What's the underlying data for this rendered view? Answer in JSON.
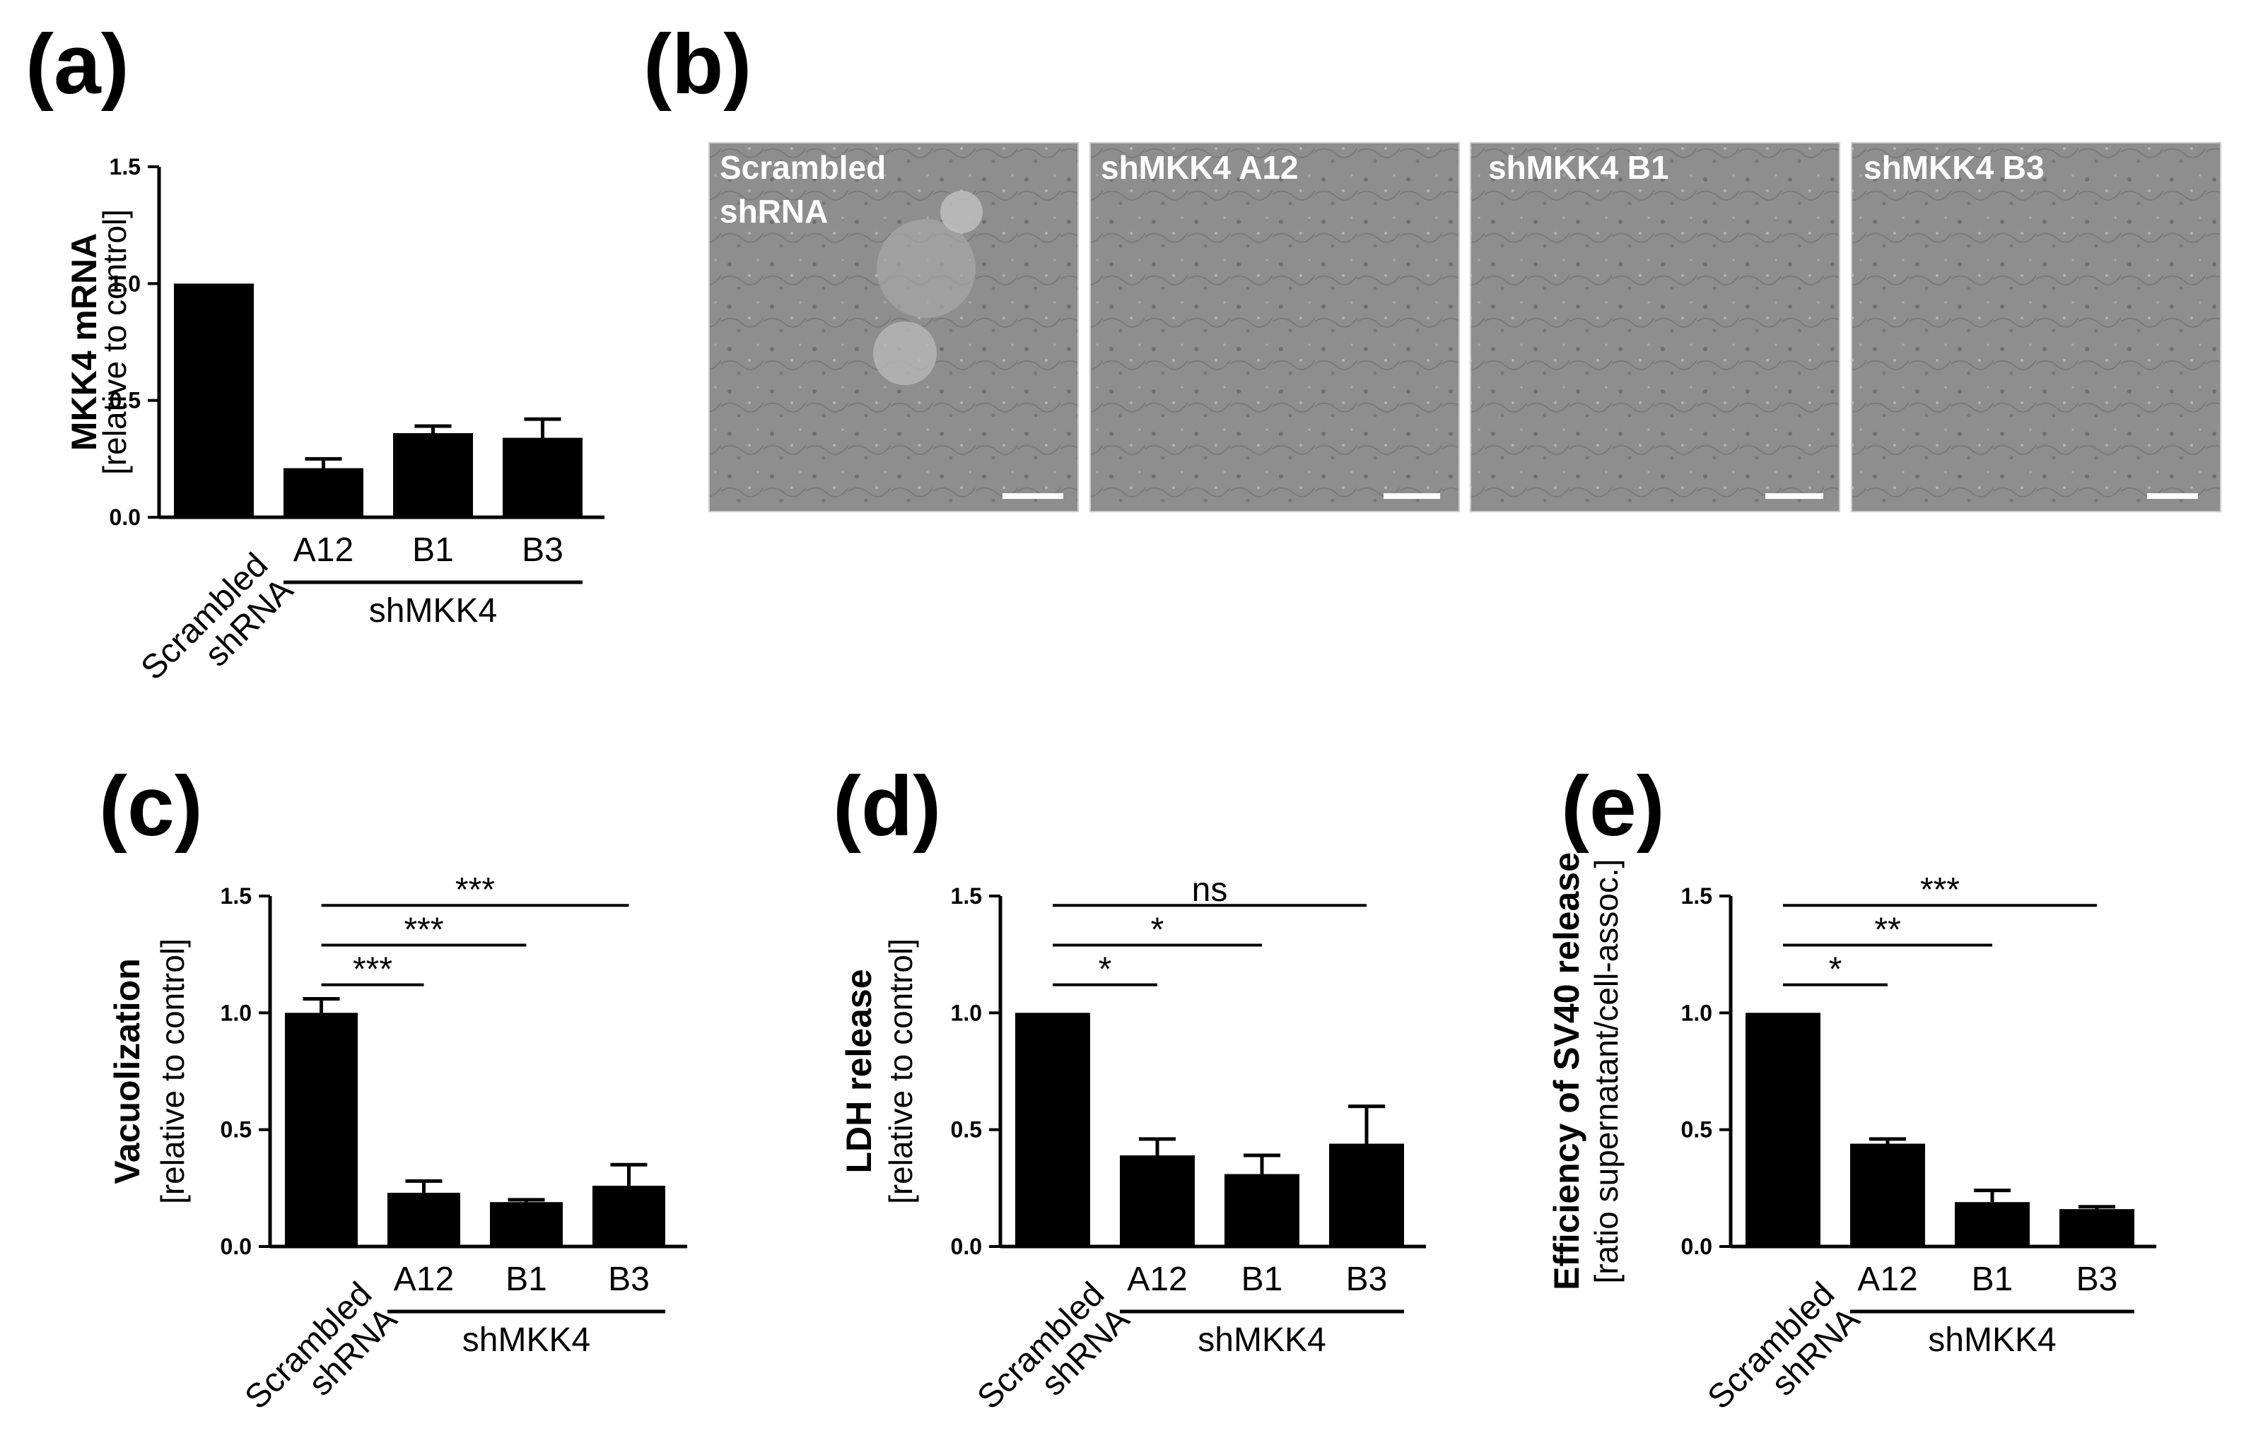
{
  "figure": {
    "panels": [
      {
        "letter": "(a)"
      },
      {
        "letter": "(b)"
      },
      {
        "letter": "(c)"
      },
      {
        "letter": "(d)"
      },
      {
        "letter": "(e)"
      }
    ],
    "micrographs": [
      {
        "label_lines": [
          "Scrambled",
          "shRNA"
        ]
      },
      {
        "label_lines": [
          "shMKK4 A12"
        ]
      },
      {
        "label_lines": [
          "shMKK4 B1"
        ]
      },
      {
        "label_lines": [
          "shMKK4 B3"
        ]
      }
    ],
    "colors": {
      "bars": "#000000",
      "micrograph_bg": "#8e8e8e",
      "micrograph_text": "#ffffff"
    }
  },
  "chart_data": [
    {
      "panel": "(a)",
      "type": "bar",
      "categories": [
        "Scrambled shRNA",
        "A12",
        "B1",
        "B3"
      ],
      "category_lines": [
        [
          "Scrambled",
          "shRNA"
        ],
        [
          "A12"
        ],
        [
          "B1"
        ],
        [
          "B3"
        ]
      ],
      "group_label": "shMKK4",
      "group_members": [
        "A12",
        "B1",
        "B3"
      ],
      "values": [
        1.0,
        0.21,
        0.36,
        0.34
      ],
      "errors": [
        0.0,
        0.04,
        0.03,
        0.08
      ],
      "ylabel_bold": "MKK4 mRNA",
      "ylabel_normal": "[relative to control]",
      "ylim": [
        0,
        1.5
      ],
      "yticks": [
        "0.0",
        "0.5",
        "1.0",
        "1.5"
      ],
      "significance": []
    },
    {
      "panel": "(c)",
      "type": "bar",
      "categories": [
        "Scrambled shRNA",
        "A12",
        "B1",
        "B3"
      ],
      "category_lines": [
        [
          "Scrambled",
          "shRNA"
        ],
        [
          "A12"
        ],
        [
          "B1"
        ],
        [
          "B3"
        ]
      ],
      "group_label": "shMKK4",
      "group_members": [
        "A12",
        "B1",
        "B3"
      ],
      "values": [
        1.0,
        0.23,
        0.19,
        0.26
      ],
      "errors": [
        0.06,
        0.05,
        0.01,
        0.09
      ],
      "ylabel_bold": "Vacuolization",
      "ylabel_normal": "[relative to control]",
      "ylim": [
        0,
        1.5
      ],
      "yticks": [
        "0.0",
        "0.5",
        "1.0",
        "1.5"
      ],
      "significance": [
        {
          "label": "***",
          "to": "A12",
          "y": 1.12
        },
        {
          "label": "***",
          "to": "B1",
          "y": 1.29
        },
        {
          "label": "***",
          "to": "B3",
          "y": 1.46
        }
      ]
    },
    {
      "panel": "(d)",
      "type": "bar",
      "categories": [
        "Scrambled shRNA",
        "A12",
        "B1",
        "B3"
      ],
      "category_lines": [
        [
          "Scrambled",
          "shRNA"
        ],
        [
          "A12"
        ],
        [
          "B1"
        ],
        [
          "B3"
        ]
      ],
      "group_label": "shMKK4",
      "group_members": [
        "A12",
        "B1",
        "B3"
      ],
      "values": [
        1.0,
        0.39,
        0.31,
        0.44
      ],
      "errors": [
        0.0,
        0.07,
        0.08,
        0.16
      ],
      "ylabel_bold": "LDH release",
      "ylabel_normal": "[relative to control]",
      "ylim": [
        0,
        1.5
      ],
      "yticks": [
        "0.0",
        "0.5",
        "1.0",
        "1.5"
      ],
      "significance": [
        {
          "label": "*",
          "to": "A12",
          "y": 1.12
        },
        {
          "label": "*",
          "to": "B1",
          "y": 1.29
        },
        {
          "label": "ns",
          "to": "B3",
          "y": 1.46
        }
      ]
    },
    {
      "panel": "(e)",
      "type": "bar",
      "categories": [
        "Scrambled shRNA",
        "A12",
        "B1",
        "B3"
      ],
      "category_lines": [
        [
          "Scrambled",
          "shRNA"
        ],
        [
          "A12"
        ],
        [
          "B1"
        ],
        [
          "B3"
        ]
      ],
      "group_label": "shMKK4",
      "group_members": [
        "A12",
        "B1",
        "B3"
      ],
      "values": [
        1.0,
        0.44,
        0.19,
        0.16
      ],
      "errors": [
        0.0,
        0.02,
        0.05,
        0.01
      ],
      "ylabel_bold": "Efficiency of SV40 release",
      "ylabel_normal": "[ratio supernatant/cell-assoc.]",
      "ylim": [
        0,
        1.5
      ],
      "yticks": [
        "0.0",
        "0.5",
        "1.0",
        "1.5"
      ],
      "significance": [
        {
          "label": "*",
          "to": "A12",
          "y": 1.12
        },
        {
          "label": "**",
          "to": "B1",
          "y": 1.29
        },
        {
          "label": "***",
          "to": "B3",
          "y": 1.46
        }
      ]
    }
  ]
}
